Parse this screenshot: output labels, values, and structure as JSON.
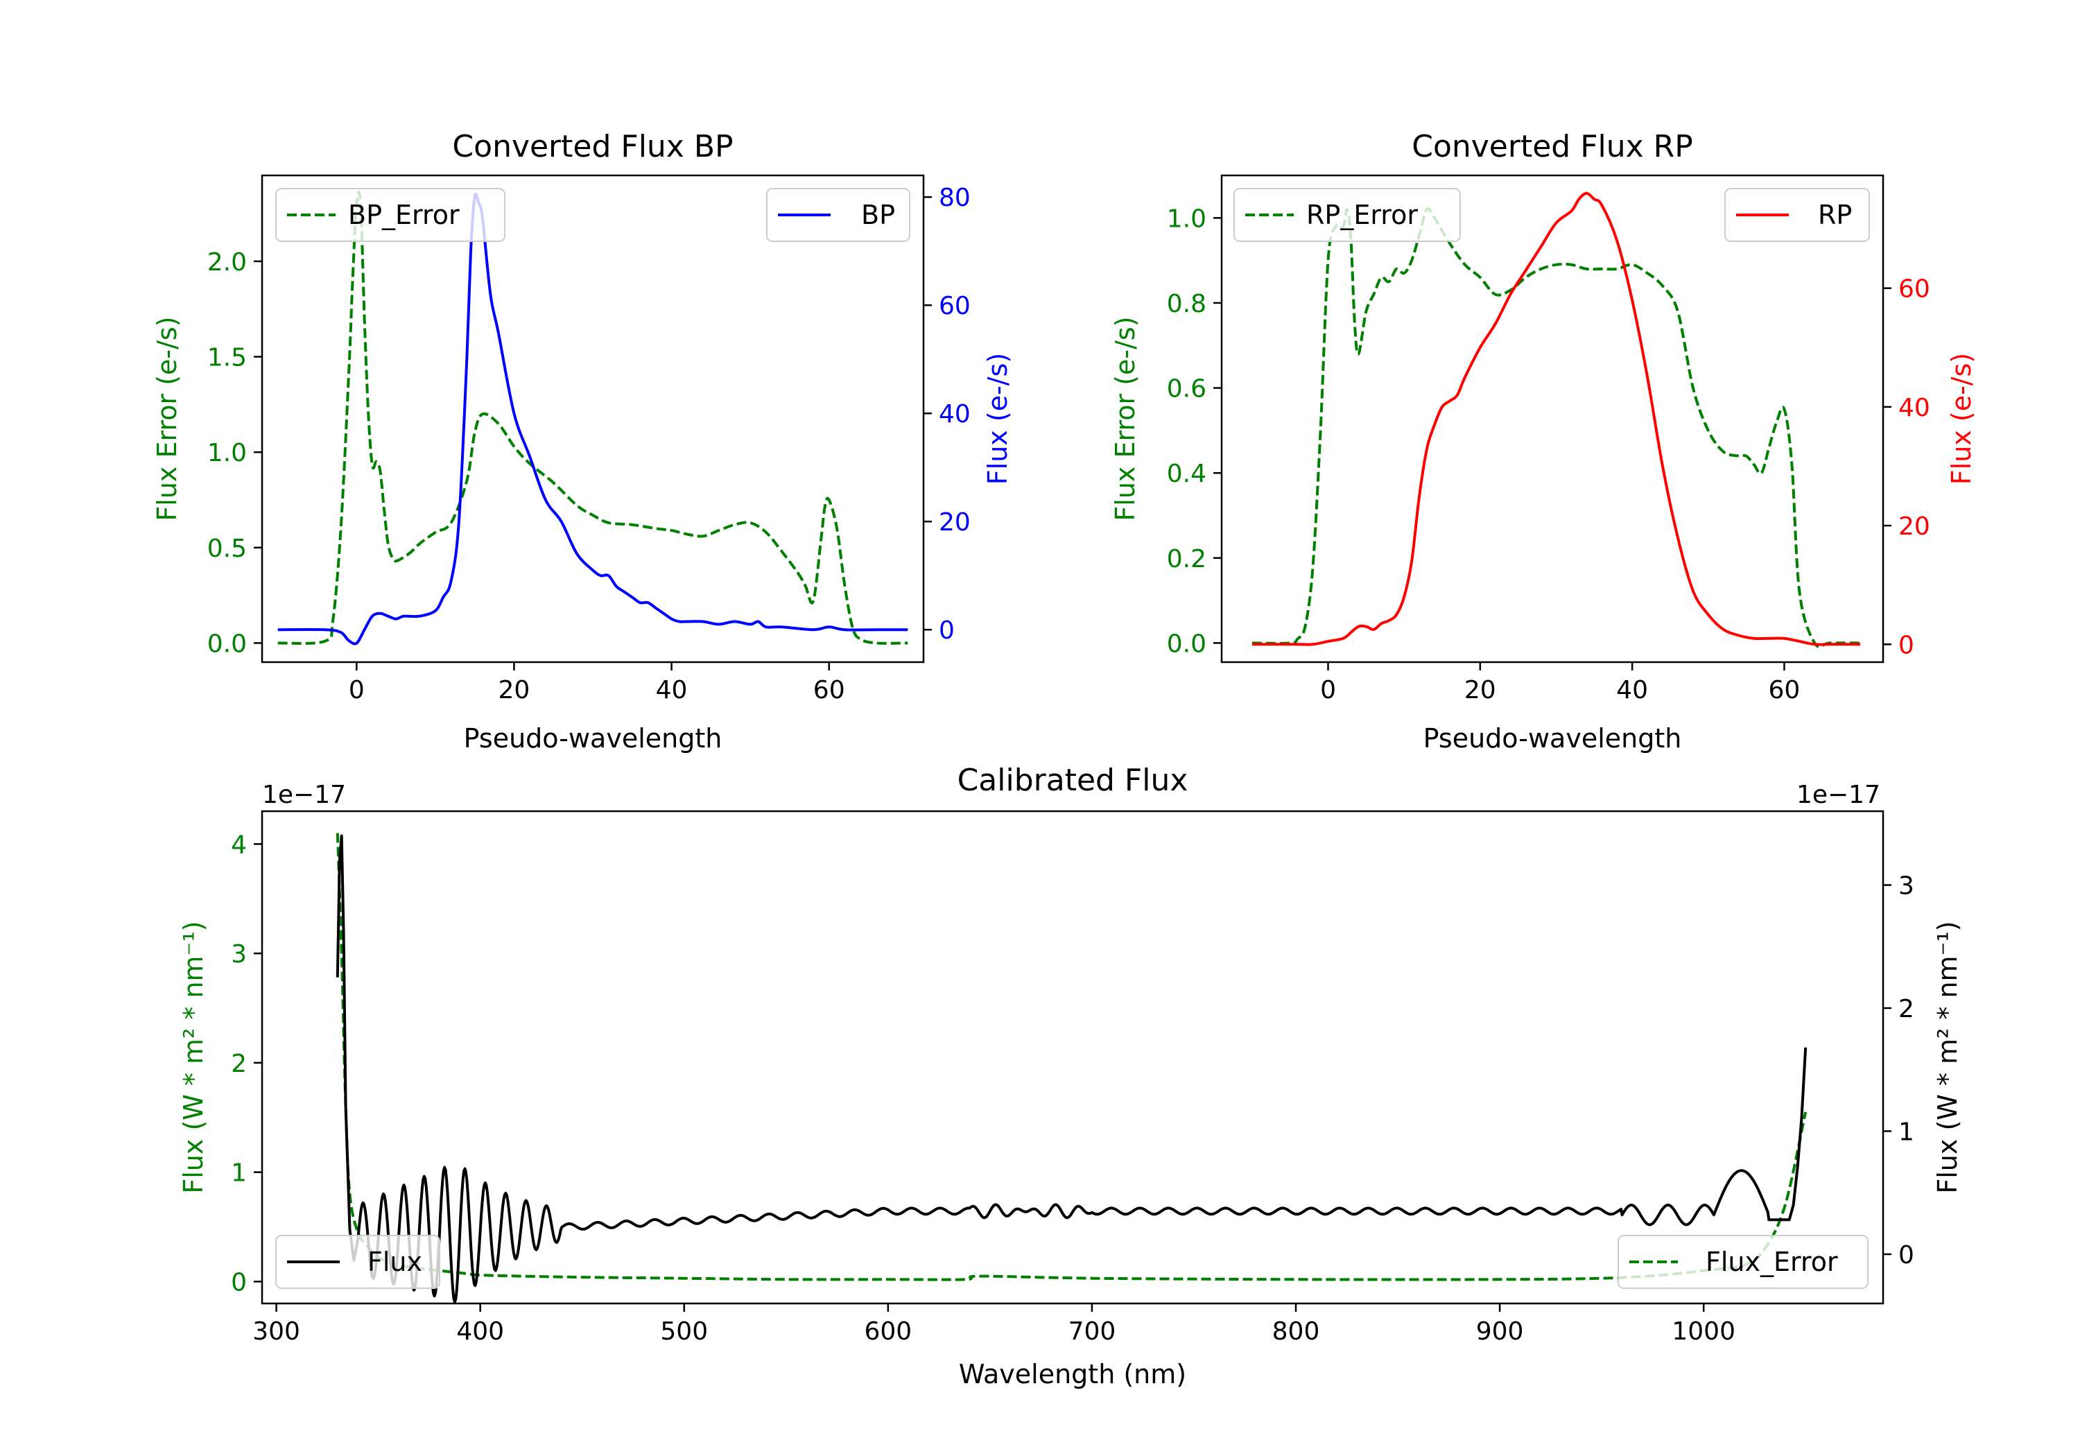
{
  "chart_data": [
    {
      "type": "line",
      "title": "Converted Flux BP",
      "xlabel": "Pseudo-wavelength",
      "xlim": [
        -12,
        72
      ],
      "xticks": [
        0,
        20,
        40,
        60
      ],
      "left_axis": {
        "label": "Flux Error (e-/s)",
        "color": "#008000",
        "lim": [
          -0.1,
          2.45
        ],
        "ticks": [
          0.0,
          0.5,
          1.0,
          1.5,
          2.0
        ],
        "tick_labels": [
          "0.0",
          "0.5",
          "1.0",
          "1.5",
          "2.0"
        ]
      },
      "right_axis": {
        "label": "Flux (e-/s)",
        "color": "#0000ff",
        "lim": [
          -6,
          84
        ],
        "ticks": [
          0,
          20,
          40,
          60,
          80
        ],
        "tick_labels": [
          "0",
          "20",
          "40",
          "60",
          "80"
        ]
      },
      "legends": [
        {
          "label": "BP_Error",
          "color": "#008000",
          "dashed": true,
          "position": "upper left"
        },
        {
          "label": "BP",
          "color": "#0000ff",
          "dashed": false,
          "position": "upper right"
        }
      ],
      "series": [
        {
          "name": "BP_Error",
          "axis": "left",
          "color": "#008000",
          "dashed": true,
          "x": [
            -10,
            -4,
            -3,
            -2,
            -1,
            -0.5,
            0,
            0.5,
            1,
            1.5,
            2,
            2.5,
            3,
            3.5,
            4,
            4.5,
            5,
            6,
            7,
            8,
            10,
            12,
            14,
            15,
            16,
            18,
            20,
            22,
            25,
            28,
            30,
            32,
            35,
            38,
            40,
            42,
            44,
            46,
            48,
            50,
            52,
            54,
            56,
            57,
            58,
            59,
            59.5,
            60,
            61,
            62,
            63,
            64,
            66,
            70
          ],
          "y": [
            0.0,
            0.01,
            0.12,
            0.6,
            1.4,
            1.9,
            2.3,
            2.3,
            1.7,
            1.2,
            0.93,
            0.95,
            0.9,
            0.7,
            0.52,
            0.45,
            0.43,
            0.45,
            0.48,
            0.52,
            0.58,
            0.63,
            0.85,
            1.1,
            1.2,
            1.15,
            1.03,
            0.94,
            0.84,
            0.72,
            0.67,
            0.63,
            0.62,
            0.6,
            0.59,
            0.57,
            0.56,
            0.59,
            0.62,
            0.63,
            0.58,
            0.48,
            0.37,
            0.3,
            0.22,
            0.55,
            0.72,
            0.75,
            0.6,
            0.3,
            0.08,
            0.02,
            0.0,
            0.0
          ]
        },
        {
          "name": "BP",
          "axis": "right",
          "color": "#0000ff",
          "dashed": false,
          "x": [
            -10,
            -4,
            -2,
            -1,
            0,
            1,
            2,
            3,
            4,
            5,
            6,
            8,
            10,
            11,
            12,
            13,
            14,
            14.5,
            15,
            15.5,
            16,
            17,
            18,
            20,
            22,
            24,
            26,
            28,
            30,
            31,
            32,
            33,
            34,
            35,
            36,
            37,
            38,
            39,
            40,
            41,
            42,
            44,
            46,
            48,
            50,
            51,
            52,
            54,
            58,
            60,
            62,
            66,
            70
          ],
          "y": [
            0,
            0,
            -0.5,
            -2,
            -2.5,
            0,
            2.5,
            3,
            2.5,
            2,
            2.5,
            2.5,
            3.5,
            6,
            9,
            20,
            50,
            70,
            80,
            79,
            76,
            62,
            55,
            40,
            32,
            24,
            20,
            14,
            11,
            10,
            10,
            8,
            7,
            6,
            5,
            5,
            4,
            3,
            2,
            1.5,
            1.5,
            1.5,
            1,
            1.5,
            1,
            1.5,
            0.5,
            0.5,
            0,
            0.5,
            0,
            0,
            0
          ]
        }
      ]
    },
    {
      "type": "line",
      "title": "Converted Flux RP",
      "xlabel": "Pseudo-wavelength",
      "xlim": [
        -14,
        73
      ],
      "xticks": [
        0,
        20,
        40,
        60
      ],
      "left_axis": {
        "label": "Flux Error (e-/s)",
        "color": "#008000",
        "lim": [
          -0.045,
          1.1
        ],
        "ticks": [
          0.0,
          0.2,
          0.4,
          0.6,
          0.8,
          1.0
        ],
        "tick_labels": [
          "0.0",
          "0.2",
          "0.4",
          "0.6",
          "0.8",
          "1.0"
        ]
      },
      "right_axis": {
        "label": "Flux (e-/s)",
        "color": "#ff0000",
        "lim": [
          -3,
          79
        ],
        "ticks": [
          0,
          20,
          40,
          60
        ],
        "tick_labels": [
          "0",
          "20",
          "40",
          "60"
        ]
      },
      "legends": [
        {
          "label": "RP_Error",
          "color": "#008000",
          "dashed": true,
          "position": "upper left"
        },
        {
          "label": "RP",
          "color": "#ff0000",
          "dashed": false,
          "position": "upper right"
        }
      ],
      "series": [
        {
          "name": "RP_Error",
          "axis": "left",
          "color": "#008000",
          "dashed": true,
          "x": [
            -10,
            -5,
            -4,
            -3,
            -2,
            -1,
            0,
            1,
            2,
            2.5,
            3,
            3.5,
            4,
            5,
            6,
            7,
            8,
            9,
            10,
            11,
            12,
            13,
            14,
            16,
            18,
            20,
            22,
            24,
            26,
            28,
            30,
            32,
            34,
            36,
            38,
            40,
            42,
            44,
            46,
            48,
            50,
            52,
            54,
            55,
            56,
            57,
            58,
            59,
            60,
            61,
            62,
            64,
            66,
            70
          ],
          "y": [
            0.0,
            0.0,
            0.01,
            0.04,
            0.18,
            0.5,
            0.9,
            0.98,
            0.98,
            1.02,
            0.95,
            0.75,
            0.68,
            0.78,
            0.82,
            0.86,
            0.85,
            0.88,
            0.87,
            0.9,
            0.96,
            1.02,
            1.0,
            0.94,
            0.89,
            0.86,
            0.82,
            0.83,
            0.86,
            0.88,
            0.89,
            0.89,
            0.88,
            0.88,
            0.88,
            0.89,
            0.87,
            0.84,
            0.78,
            0.6,
            0.5,
            0.45,
            0.44,
            0.44,
            0.42,
            0.4,
            0.46,
            0.52,
            0.55,
            0.42,
            0.12,
            0.0,
            0.0,
            0.0
          ]
        },
        {
          "name": "RP",
          "axis": "right",
          "color": "#ff0000",
          "dashed": false,
          "x": [
            -10,
            -4,
            -2,
            0,
            2,
            3,
            4,
            5,
            6,
            7,
            8,
            9,
            10,
            11,
            12,
            13,
            14,
            15,
            16,
            17,
            18,
            20,
            22,
            24,
            26,
            28,
            30,
            32,
            33,
            34,
            35,
            36,
            38,
            40,
            42,
            44,
            46,
            48,
            50,
            52,
            54,
            56,
            58,
            60,
            62,
            64,
            66,
            70
          ],
          "y": [
            0,
            0,
            0,
            0.5,
            1,
            2,
            3,
            3,
            2.5,
            3.5,
            4,
            5,
            8,
            14,
            25,
            33,
            37,
            40,
            41,
            42,
            45,
            50,
            54,
            59,
            63,
            67,
            71,
            73,
            75,
            76,
            75,
            74,
            68,
            58,
            45,
            30,
            18,
            9,
            5,
            2.5,
            1.5,
            1,
            1,
            1,
            0.5,
            0,
            0,
            0
          ]
        }
      ]
    },
    {
      "type": "line",
      "title": "Calibrated Flux",
      "xlabel": "Wavelength (nm)",
      "xlim": [
        293,
        1088
      ],
      "xticks": [
        300,
        400,
        500,
        600,
        700,
        800,
        900,
        1000
      ],
      "left_axis": {
        "label": "Flux (W * m² * nm⁻¹)",
        "color": "#008000",
        "lim": [
          -0.2,
          4.3
        ],
        "ticks": [
          0,
          1,
          2,
          3,
          4
        ],
        "tick_labels": [
          "0",
          "1",
          "2",
          "3",
          "4"
        ],
        "offset_text": "1e−17"
      },
      "right_axis": {
        "label": "Flux (W * m² * nm⁻¹)",
        "color": "#000000",
        "lim": [
          -0.4,
          3.6
        ],
        "ticks": [
          0,
          1,
          2,
          3
        ],
        "tick_labels": [
          "0",
          "1",
          "2",
          "3"
        ],
        "offset_text": "1e−17"
      },
      "legends": [
        {
          "label": "Flux",
          "color": "#000000",
          "dashed": false,
          "position": "lower left"
        },
        {
          "label": "Flux_Error",
          "color": "#008000",
          "dashed": true,
          "position": "lower right"
        }
      ],
      "series": [
        {
          "name": "Flux_Error",
          "axis": "left",
          "color": "#008000",
          "dashed": true,
          "x": [
            330,
            332,
            334,
            336,
            340,
            345,
            350,
            355,
            360,
            370,
            380,
            390,
            400,
            420,
            450,
            500,
            550,
            600,
            638,
            645,
            700,
            800,
            900,
            950,
            980,
            1000,
            1010,
            1020,
            1030,
            1040,
            1050
          ],
          "y": [
            4.1,
            3.0,
            1.6,
            0.8,
            0.45,
            0.32,
            0.22,
            0.18,
            0.15,
            0.12,
            0.1,
            0.08,
            0.06,
            0.05,
            0.04,
            0.03,
            0.02,
            0.02,
            0.02,
            0.05,
            0.03,
            0.02,
            0.02,
            0.03,
            0.06,
            0.1,
            0.12,
            0.15,
            0.3,
            0.7,
            1.55
          ]
        }
      ]
    }
  ]
}
